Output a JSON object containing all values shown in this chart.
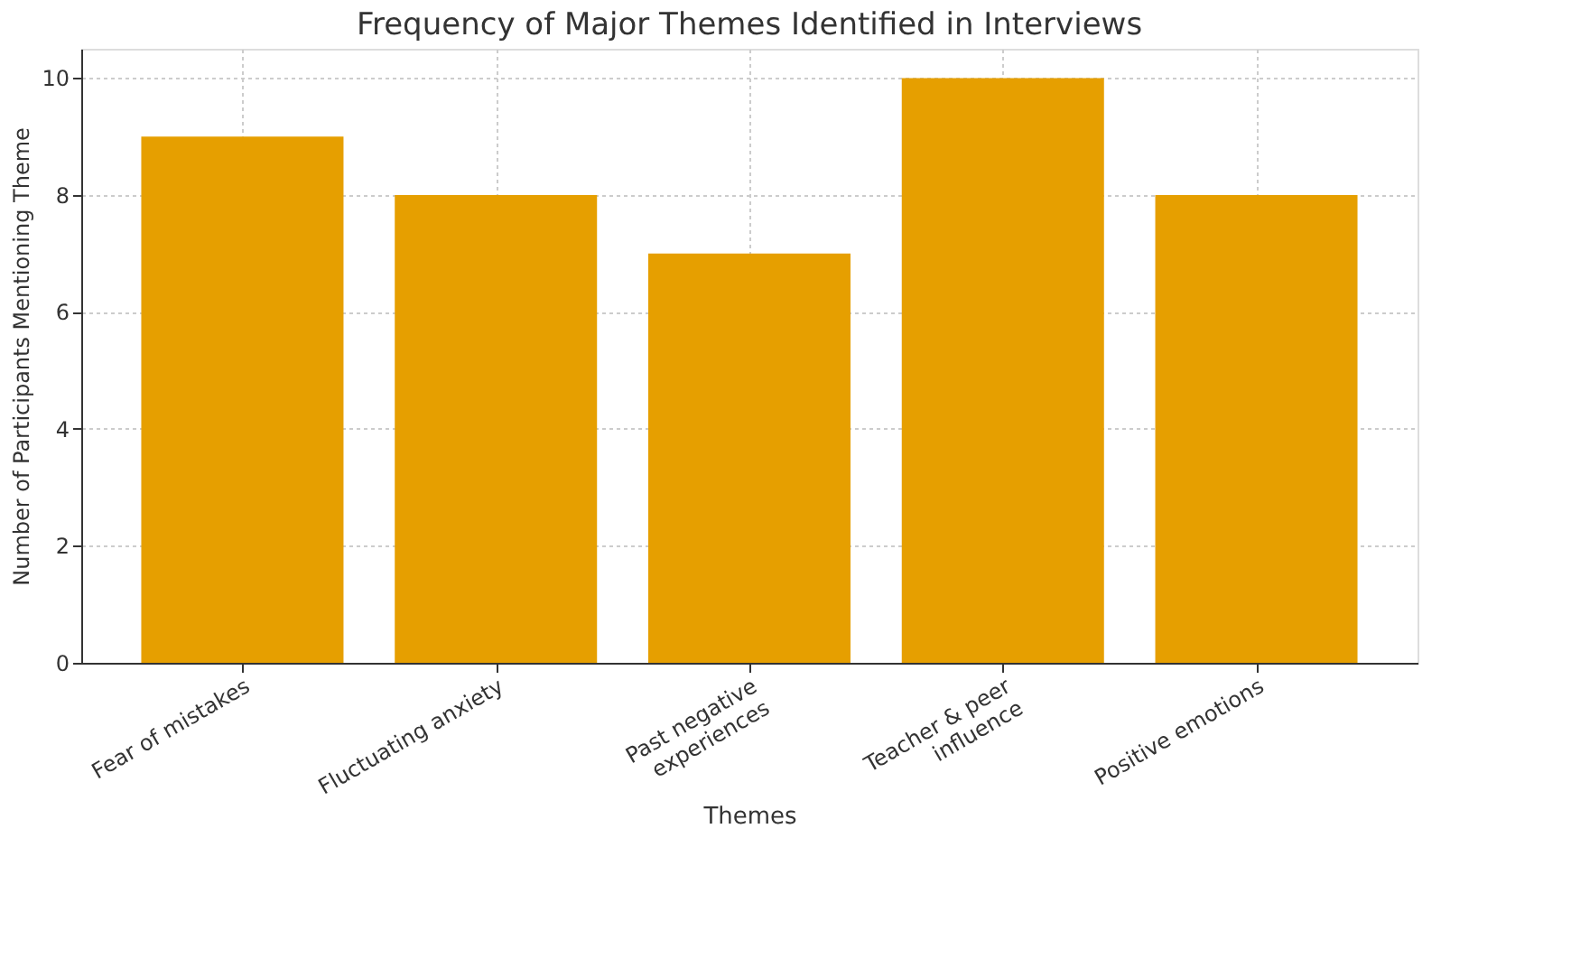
{
  "chart_data": {
    "type": "bar",
    "title": "Frequency of Major Themes Identified in Interviews",
    "xlabel": "Themes",
    "ylabel": "Number of Participants Mentioning Theme",
    "categories": [
      "Fear of mistakes",
      "Fluctuating anxiety",
      "Past negative\nexperiences",
      "Teacher & peer\ninfluence",
      "Positive emotions"
    ],
    "values": [
      9,
      8,
      7,
      10,
      8
    ],
    "color": "#e69f00",
    "ylim": [
      0,
      10.5
    ],
    "yticks": [
      0,
      2,
      4,
      6,
      8,
      10
    ],
    "grid": true
  }
}
